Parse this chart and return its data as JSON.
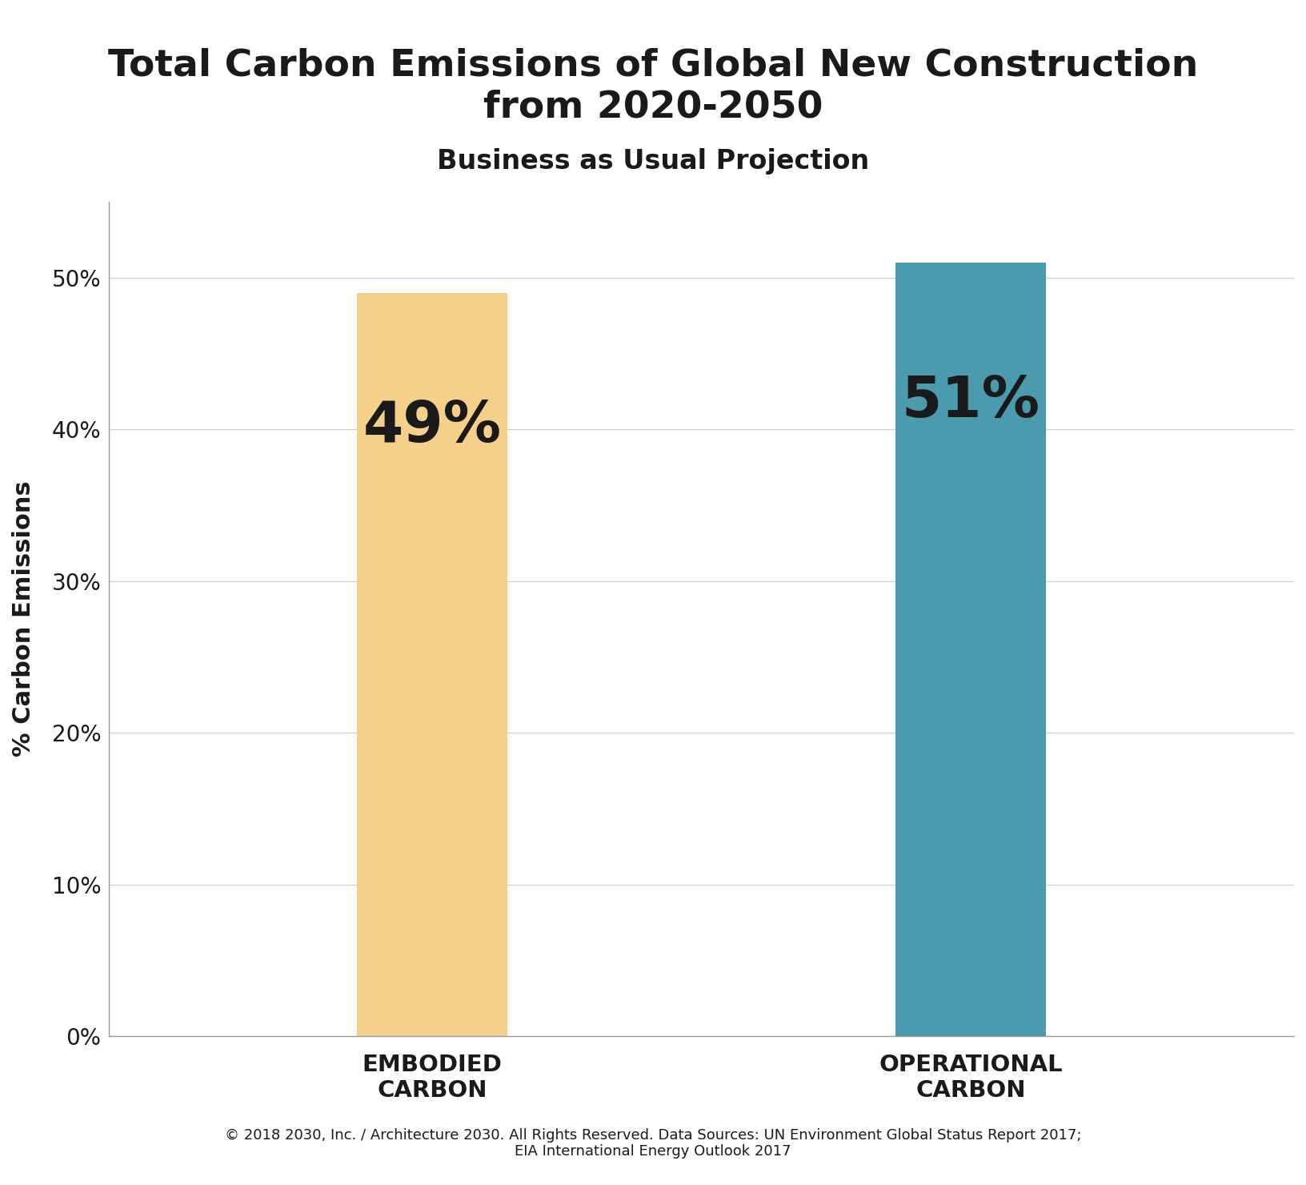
{
  "title_line1": "Total Carbon Emissions of Global New Construction",
  "title_line2": "from 2020-2050",
  "subtitle": "Business as Usual Projection",
  "categories": [
    "EMBODIED\nCARBON",
    "OPERATIONAL\nCARBON"
  ],
  "values": [
    49,
    51
  ],
  "bar_colors": [
    "#F5D08A",
    "#4A9BAD"
  ],
  "bar_labels": [
    "49%",
    "51%"
  ],
  "ylabel": "% Carbon Emissions",
  "yticks": [
    0,
    10,
    20,
    30,
    40,
    50
  ],
  "ytick_labels": [
    "0%",
    "10%",
    "20%",
    "30%",
    "40%",
    "50%"
  ],
  "ylim": [
    0,
    55
  ],
  "footnote_line1": "© 2018 2030, Inc. / Architecture 2030. All Rights Reserved. Data Sources: UN Environment Global Status Report 2017;",
  "footnote_line2": "EIA International Energy Outlook 2017",
  "background_color": "#FFFFFF",
  "title_fontsize": 34,
  "subtitle_fontsize": 24,
  "ylabel_fontsize": 22,
  "bar_label_fontsize": 52,
  "tick_fontsize": 20,
  "xtick_fontsize": 21,
  "footnote_fontsize": 13,
  "grid_color": "#CCCCCC",
  "axis_color": "#999999",
  "text_color": "#1A1A1A",
  "bar_width": 0.28,
  "x_positions": [
    1,
    2
  ],
  "xlim": [
    0.4,
    2.6
  ]
}
